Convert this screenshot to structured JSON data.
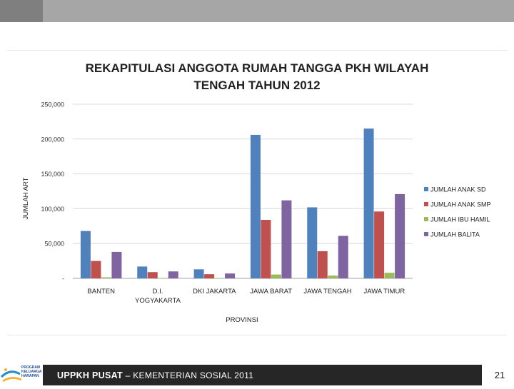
{
  "chart_data": {
    "type": "bar",
    "title_line1": "REKAPITULASI ANGGOTA RUMAH TANGGA PKH WILAYAH",
    "title_line2": "TENGAH TAHUN 2012",
    "xlabel": "PROVINSI",
    "ylabel": "JUMLAH ART",
    "ylim": [
      0,
      250000
    ],
    "y_ticks": [
      "-",
      "50,000",
      "100,000",
      "150,000",
      "200,000",
      "250,000"
    ],
    "y_tick_values": [
      0,
      50000,
      100000,
      150000,
      200000,
      250000
    ],
    "categories": [
      [
        "BANTEN"
      ],
      [
        "D.I.",
        "YOGYAKARTA"
      ],
      [
        "DKI JAKARTA"
      ],
      [
        "JAWA BARAT"
      ],
      [
        "JAWA TENGAH"
      ],
      [
        "JAWA TIMUR"
      ]
    ],
    "series": [
      {
        "name": "JUMLAH ANAK SD",
        "color": "#4f81bd",
        "values": [
          68000,
          17000,
          13000,
          206000,
          102000,
          215000
        ]
      },
      {
        "name": "JUMLAH ANAK SMP",
        "color": "#c0504d",
        "values": [
          25000,
          9000,
          6000,
          84000,
          39000,
          96000
        ]
      },
      {
        "name": "JUMLAH IBU HAMIL",
        "color": "#9bbb59",
        "values": [
          1500,
          500,
          500,
          5500,
          4000,
          8000
        ]
      },
      {
        "name": "JUMLAH BALITA",
        "color": "#8064a2",
        "values": [
          38000,
          10000,
          7000,
          112000,
          61000,
          121000
        ]
      }
    ],
    "grid": "horizontal",
    "legend_position": "right"
  },
  "footer": {
    "lead": "UPPKH PUSAT",
    "rest": " – KEMENTERIAN SOSIAL 2011"
  },
  "page_number": "21",
  "logo": {
    "line1": "PROGRAM",
    "line2": "KELUARGA",
    "line3": "HARAPAN"
  }
}
